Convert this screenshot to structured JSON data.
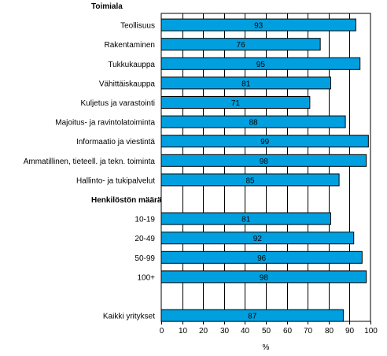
{
  "chart_data": {
    "type": "bar",
    "orientation": "horizontal",
    "groups": [
      {
        "header": "Toimiala",
        "categories": [
          "Teollisuus",
          "Rakentaminen",
          "Tukkukauppa",
          "Vähittäiskauppa",
          "Kuljetus ja varastointi",
          "Majoitus- ja ravintolatoiminta",
          "Informaatio ja viestintä",
          "Ammatillinen, tieteell. ja tekn. toiminta",
          "Hallinto- ja tukipalvelut"
        ],
        "values": [
          93,
          76,
          95,
          81,
          71,
          88,
          99,
          98,
          85
        ]
      },
      {
        "header": "Henkilöstön määrä",
        "categories": [
          "10-19",
          "20-49",
          "50-99",
          "100+"
        ],
        "values": [
          81,
          92,
          96,
          98
        ]
      },
      {
        "header": "",
        "categories": [
          "Kaikki yritykset"
        ],
        "values": [
          87
        ]
      }
    ],
    "xlabel": "%",
    "xlim": [
      0,
      100
    ],
    "xticks": [
      "0",
      "10",
      "20",
      "30",
      "40",
      "50",
      "60",
      "70",
      "80",
      "90",
      "100"
    ],
    "bar_color": "#00a0e0",
    "grid": true
  }
}
